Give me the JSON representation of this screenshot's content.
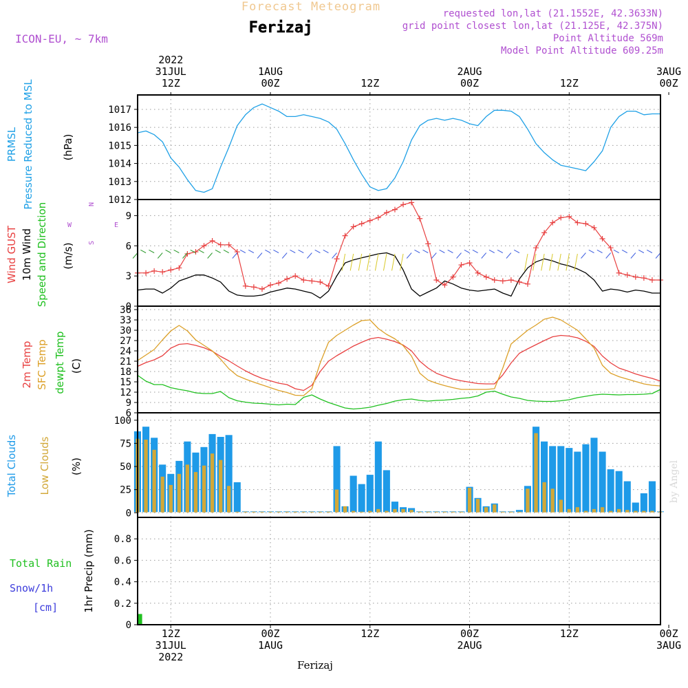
{
  "header": {
    "title_top": "Forecast Meteogram",
    "location": "Ferizaj",
    "model": "ICON-EU, ~ 7km",
    "requested": "requested lon,lat (21.1552E, 42.3633N)",
    "grid_point": "grid point closest lon,lat (21.125E, 42.375N)",
    "point_alt": "Point Altitude 569m",
    "model_alt": "Model Point Altitude 609.25m",
    "footer_location": "Ferizaj",
    "credit": "by Angel"
  },
  "time_axis": {
    "start_hour": 8,
    "end_hour": 71,
    "top_labels": [
      {
        "h": 12,
        "lines": [
          "2022",
          "31JUL",
          "12Z"
        ]
      },
      {
        "h": 24,
        "lines": [
          "1AUG",
          "00Z"
        ]
      },
      {
        "h": 36,
        "lines": [
          "12Z"
        ]
      },
      {
        "h": 48,
        "lines": [
          "2AUG",
          "00Z"
        ]
      },
      {
        "h": 60,
        "lines": [
          "12Z"
        ]
      },
      {
        "h": 72,
        "lines": [
          "3AUG",
          "00Z"
        ]
      }
    ],
    "bottom_labels": [
      {
        "h": 12,
        "lines": [
          "12Z",
          "31JUL",
          "2022"
        ]
      },
      {
        "h": 24,
        "lines": [
          "00Z",
          "1AUG"
        ]
      },
      {
        "h": 36,
        "lines": [
          "12Z"
        ]
      },
      {
        "h": 48,
        "lines": [
          "00Z",
          "2AUG"
        ]
      },
      {
        "h": 60,
        "lines": [
          "12Z"
        ]
      },
      {
        "h": 72,
        "lines": [
          "00Z",
          "3AUG"
        ]
      }
    ]
  },
  "colors": {
    "pressure": "#1ea0e6",
    "gust": "#e84040",
    "wind": "#000000",
    "t2m": "#e84040",
    "sfc": "#dca028",
    "dew": "#20c020",
    "total_cloud": "#1e9ae8",
    "low_cloud": "#d2a838",
    "rain": "#20c020",
    "snow": "#3c3cdc",
    "grid": "#999999",
    "purple": "#b050d0",
    "title_top": "#f0c890"
  },
  "chart_data": [
    {
      "id": "pressure",
      "type": "line",
      "y_labels": [
        "PRMSL",
        "Pressure Reduced to MSL",
        "(hPa)"
      ],
      "ylim": [
        1012,
        1017.8
      ],
      "yticks": [
        1012,
        1013,
        1014,
        1015,
        1016,
        1017
      ],
      "series": [
        {
          "x": [
            8,
            9,
            10,
            11,
            12,
            13,
            14,
            15,
            16,
            17,
            18,
            19,
            20,
            21,
            22,
            23,
            24,
            25,
            26,
            27,
            28,
            29,
            30,
            31,
            32,
            33,
            34,
            35,
            36,
            37,
            38,
            39,
            40,
            41,
            42,
            43,
            44,
            45,
            46,
            47,
            48,
            49,
            50,
            51,
            52,
            53,
            54,
            55,
            56,
            57,
            58,
            59,
            60,
            61,
            62,
            63,
            64,
            65,
            66,
            67,
            68,
            69,
            70,
            71
          ],
          "y": [
            1015.7,
            1015.8,
            1015.6,
            1015.2,
            1014.3,
            1013.8,
            1013.1,
            1012.5,
            1012.4,
            1012.6,
            1013.8,
            1014.9,
            1016.1,
            1016.7,
            1017.1,
            1017.3,
            1017.1,
            1016.9,
            1016.6,
            1016.6,
            1016.7,
            1016.6,
            1016.5,
            1016.3,
            1015.9,
            1015.1,
            1014.2,
            1013.4,
            1012.7,
            1012.5,
            1012.6,
            1013.2,
            1014.1,
            1015.3,
            1016.1,
            1016.4,
            1016.5,
            1016.4,
            1016.5,
            1016.4,
            1016.2,
            1016.1,
            1016.6,
            1016.95,
            1016.95,
            1016.9,
            1016.6,
            1015.9,
            1015.1,
            1014.6,
            1014.2,
            1013.9,
            1013.8,
            1013.7,
            1013.6,
            1014.1,
            1014.7,
            1016.0,
            1016.6,
            1016.9,
            1016.9,
            1016.7,
            1016.75,
            1016.75
          ]
        }
      ]
    },
    {
      "id": "wind",
      "type": "line",
      "y_labels": [
        "Wind GUST",
        "10m Wind",
        "Speed and Direction",
        "(m/s)"
      ],
      "compass": {
        "w": "W",
        "e": "E",
        "n": "N",
        "s": "S"
      },
      "ylim": [
        0,
        10.6
      ],
      "yticks": [
        0,
        3,
        6,
        9
      ],
      "series": [
        {
          "name": "gust",
          "y": [
            3.3,
            3.3,
            3.5,
            3.4,
            3.6,
            3.8,
            5.2,
            5.4,
            6.0,
            6.5,
            6.1,
            6.1,
            5.4,
            2.0,
            1.9,
            1.7,
            2.1,
            2.3,
            2.7,
            3.0,
            2.6,
            2.5,
            2.4,
            2.0,
            4.7,
            7.0,
            7.9,
            8.2,
            8.5,
            8.8,
            9.3,
            9.6,
            10.1,
            10.3,
            8.7,
            6.2,
            2.6,
            2.1,
            2.9,
            4.1,
            4.3,
            3.3,
            2.9,
            2.6,
            2.5,
            2.6,
            2.4,
            2.2,
            5.8,
            7.3,
            8.3,
            8.8,
            8.9,
            8.3,
            8.2,
            7.8,
            6.7,
            5.8,
            3.3,
            3.1,
            2.9,
            2.8,
            2.6,
            2.6
          ]
        },
        {
          "name": "wind",
          "y": [
            1.6,
            1.7,
            1.7,
            1.3,
            1.8,
            2.5,
            2.8,
            3.1,
            3.1,
            2.8,
            2.4,
            1.5,
            1.1,
            1.0,
            1.0,
            1.1,
            1.4,
            1.6,
            1.8,
            1.7,
            1.5,
            1.3,
            0.8,
            1.5,
            3.0,
            4.3,
            4.6,
            4.8,
            5.0,
            5.2,
            5.3,
            5.0,
            3.6,
            1.7,
            1.0,
            1.4,
            1.8,
            2.5,
            2.2,
            1.8,
            1.6,
            1.5,
            1.6,
            1.7,
            1.3,
            1.0,
            2.7,
            3.8,
            4.4,
            4.7,
            4.5,
            4.2,
            4.0,
            3.7,
            3.3,
            2.6,
            1.5,
            1.7,
            1.6,
            1.4,
            1.6,
            1.5,
            1.3,
            1.3
          ]
        }
      ]
    },
    {
      "id": "temperature",
      "type": "line",
      "y_labels": [
        "2m Temp",
        "SFC Temp",
        "dewpt Temp",
        "(C)"
      ],
      "ylim": [
        6,
        37
      ],
      "yticks": [
        6,
        9,
        12,
        15,
        18,
        21,
        24,
        27,
        30,
        33,
        36
      ],
      "series": [
        {
          "name": "t2m",
          "y": [
            19.5,
            20.6,
            21.4,
            22.6,
            24.8,
            25.9,
            26.1,
            25.6,
            24.9,
            23.9,
            22.4,
            21.1,
            19.6,
            18.2,
            17.0,
            16.0,
            15.3,
            14.6,
            14.2,
            13.0,
            12.5,
            14.0,
            18.0,
            21.0,
            22.6,
            24.0,
            25.4,
            26.5,
            27.5,
            27.9,
            27.4,
            26.7,
            25.7,
            24.0,
            21.0,
            19.0,
            17.5,
            16.6,
            15.8,
            15.3,
            14.9,
            14.5,
            14.4,
            14.4,
            17.0,
            20.5,
            23.3,
            24.6,
            25.8,
            27.0,
            28.1,
            28.5,
            28.3,
            27.8,
            26.8,
            25.3,
            22.5,
            20.5,
            19.0,
            18.2,
            17.3,
            16.6,
            16.0,
            15.2
          ]
        },
        {
          "name": "sfc",
          "y": [
            21.2,
            22.8,
            24.4,
            27.2,
            29.8,
            31.4,
            29.8,
            27.2,
            25.6,
            24.0,
            21.6,
            18.8,
            16.8,
            15.8,
            14.9,
            14.1,
            13.3,
            12.5,
            11.9,
            11.1,
            11.0,
            13.0,
            20.5,
            26.5,
            28.5,
            30.0,
            31.5,
            32.8,
            33.0,
            30.5,
            28.8,
            27.5,
            25.5,
            22.5,
            17.5,
            15.5,
            14.6,
            13.9,
            13.3,
            12.8,
            12.8,
            12.8,
            12.8,
            13.0,
            19.0,
            26.0,
            28.0,
            30.0,
            31.5,
            33.2,
            33.8,
            33.0,
            31.5,
            30.0,
            27.5,
            24.8,
            19.8,
            17.5,
            16.5,
            15.8,
            15.1,
            14.4,
            14.0,
            13.8
          ]
        },
        {
          "name": "dew",
          "y": [
            16.9,
            15.2,
            14.2,
            14.2,
            13.3,
            12.8,
            12.4,
            11.8,
            11.6,
            11.6,
            12.2,
            10.4,
            9.5,
            9.1,
            8.8,
            8.7,
            8.5,
            8.3,
            8.5,
            8.4,
            10.5,
            11.2,
            10.0,
            9.0,
            8.2,
            7.4,
            7.1,
            7.3,
            7.6,
            8.2,
            8.7,
            9.4,
            9.8,
            10.0,
            9.6,
            9.4,
            9.6,
            9.7,
            9.9,
            10.2,
            10.4,
            10.9,
            12.0,
            12.3,
            11.4,
            10.6,
            10.2,
            9.6,
            9.4,
            9.3,
            9.3,
            9.5,
            9.8,
            10.4,
            10.8,
            11.2,
            11.4,
            11.3,
            11.2,
            11.3,
            11.3,
            11.4,
            11.6,
            12.8
          ]
        }
      ]
    },
    {
      "id": "clouds",
      "type": "bar",
      "y_labels": [
        "Total Clouds",
        "Low Clouds",
        "(%)"
      ],
      "ylim": [
        -5,
        108
      ],
      "yticks": [
        0,
        25,
        50,
        75,
        100
      ],
      "series": [
        {
          "name": "total",
          "y": [
            88,
            93,
            81,
            52,
            42,
            56,
            77,
            65,
            71,
            85,
            82,
            84,
            33,
            0,
            0,
            0,
            0,
            0,
            0,
            0,
            0,
            0,
            0,
            1,
            72,
            7,
            40,
            31,
            41,
            77,
            46,
            12,
            6,
            5,
            0,
            0,
            0,
            0,
            0,
            0,
            28,
            16,
            7,
            10,
            1,
            1,
            3,
            29,
            93,
            77,
            72,
            72,
            70,
            66,
            74,
            81,
            66,
            47,
            45,
            34,
            11,
            21,
            34,
            0
          ]
        },
        {
          "name": "low",
          "y": [
            80,
            79,
            68,
            39,
            30,
            42,
            52,
            44,
            51,
            64,
            57,
            29,
            0,
            0,
            0,
            0,
            0,
            0,
            0,
            0,
            0,
            0,
            0,
            0,
            25,
            7,
            2,
            1,
            2,
            4,
            2,
            4,
            4,
            3,
            0,
            0,
            0,
            0,
            0,
            0,
            27,
            15,
            6,
            9,
            0,
            0,
            1,
            26,
            86,
            33,
            26,
            14,
            4,
            6,
            2,
            4,
            6,
            2,
            4,
            3,
            2,
            2,
            2,
            0
          ]
        }
      ]
    },
    {
      "id": "precip",
      "type": "bar",
      "y_labels": [
        "Total Rain",
        "Snow/1h",
        "[cm]",
        "1hr Precip (mm)"
      ],
      "ylim": [
        0,
        1.0
      ],
      "yticks": [
        "0",
        "0.2",
        "0.4",
        "0.6",
        "0.8"
      ],
      "series": [
        {
          "name": "rain",
          "x": [
            8.3
          ],
          "y": [
            0.1
          ]
        }
      ]
    }
  ]
}
